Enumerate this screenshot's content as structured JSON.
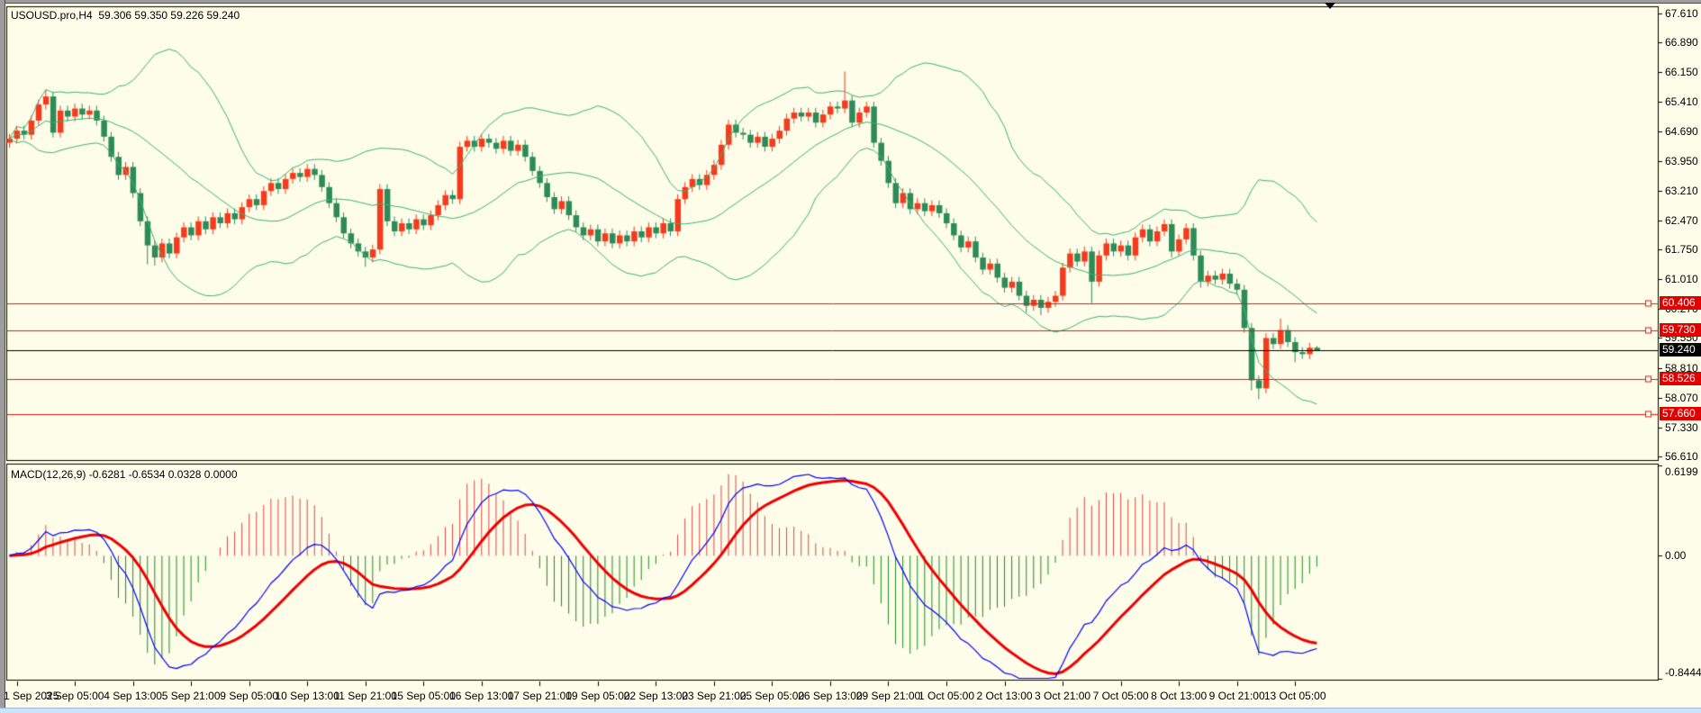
{
  "title": {
    "text": "USOUSD.pro,H4  59.306 59.350 59.226 59.240",
    "symbol": "USOUSD.pro",
    "timeframe": "H4",
    "ohlc": {
      "open": "59.306",
      "high": "59.350",
      "low": "59.226",
      "close": "59.240"
    }
  },
  "macd_label": {
    "text": "MACD(12,26,9) -0.6281 -0.6534 0.0328 0.0000",
    "params": "12,26,9",
    "main": "-0.6281",
    "signal": "-0.6534",
    "hist": "0.0328",
    "extra": "0.0000"
  },
  "macd_axis": {
    "max": "0.6199",
    "zero": "0.00",
    "min": "-0.8444"
  },
  "lines": {
    "horizontal": [
      {
        "price": 60.406,
        "label": "60.406"
      },
      {
        "price": 59.73,
        "label": "59.730"
      },
      {
        "price": 58.526,
        "label": "58.526"
      },
      {
        "price": 57.66,
        "label": "57.660"
      }
    ],
    "current": {
      "price": 59.24,
      "label": "59.240"
    }
  },
  "colors": {
    "background": "#fdfdea",
    "pane_border": "#000000",
    "bull": "#f53b1c",
    "bear": "#2e8b57",
    "bollinger": "#3cb371",
    "hline": "#e51717",
    "current_line": "#000000",
    "macd_main": "#0000ff",
    "macd_signal": "#ee0000",
    "hist_up": "#d94848",
    "hist_down": "#1f8a1f",
    "badge_red": "#e00000",
    "badge_black": "#000000",
    "axis_text": "#000000"
  },
  "chart_data": {
    "type": "candlestick",
    "symbol": "USOUSD.pro",
    "timeframe": "H4",
    "ylim": [
      56.61,
      67.61
    ],
    "y_tick_labels": [
      "67.610",
      "66.890",
      "66.150",
      "65.410",
      "64.690",
      "63.950",
      "63.210",
      "62.470",
      "61.750",
      "61.010",
      "60.270",
      "59.550",
      "58.810",
      "58.070",
      "57.330",
      "56.610"
    ],
    "x_tick_labels": [
      "1 Sep 2025",
      "3 Sep 05:00",
      "4 Sep 13:00",
      "5 Sep 21:00",
      "9 Sep 05:00",
      "10 Sep 13:00",
      "11 Sep 21:00",
      "15 Sep 05:00",
      "16 Sep 13:00",
      "17 Sep 21:00",
      "19 Sep 05:00",
      "22 Sep 13:00",
      "23 Sep 21:00",
      "25 Sep 05:00",
      "26 Sep 13:00",
      "29 Sep 21:00",
      "1 Oct 05:00",
      "2 Oct 13:00",
      "3 Oct 21:00",
      "7 Oct 05:00",
      "8 Oct 13:00",
      "9 Oct 21:00",
      "13 Oct 05:00"
    ],
    "first_label_bar": 1,
    "label_every_bars": 8,
    "indicators": {
      "bollinger": {
        "period": 20,
        "deviation": 2
      },
      "macd": {
        "fast": 12,
        "slow": 26,
        "signal": 9,
        "pane_max": 0.6199,
        "pane_min": -0.8444
      }
    },
    "candles": [
      [
        64.4,
        64.62,
        64.28,
        64.5
      ],
      [
        64.5,
        64.82,
        64.38,
        64.7
      ],
      [
        64.7,
        64.82,
        64.48,
        64.6
      ],
      [
        64.6,
        65.07,
        64.48,
        64.95
      ],
      [
        64.95,
        65.47,
        64.83,
        65.35
      ],
      [
        65.35,
        65.72,
        65.23,
        65.55
      ],
      [
        65.55,
        65.67,
        64.53,
        64.65
      ],
      [
        64.65,
        65.32,
        64.53,
        65.2
      ],
      [
        65.2,
        65.32,
        64.93,
        65.05
      ],
      [
        65.05,
        65.37,
        64.93,
        65.25
      ],
      [
        65.25,
        65.37,
        64.98,
        65.1
      ],
      [
        65.1,
        65.32,
        64.98,
        65.2
      ],
      [
        65.2,
        65.32,
        64.83,
        64.95
      ],
      [
        64.95,
        65.07,
        64.43,
        64.55
      ],
      [
        64.55,
        64.67,
        63.93,
        64.05
      ],
      [
        64.05,
        64.17,
        63.48,
        63.6
      ],
      [
        63.6,
        63.92,
        63.48,
        63.8
      ],
      [
        63.8,
        63.92,
        63.03,
        63.15
      ],
      [
        63.15,
        63.27,
        62.33,
        62.45
      ],
      [
        62.45,
        62.57,
        61.38,
        61.85
      ],
      [
        61.85,
        61.97,
        61.35,
        61.55
      ],
      [
        61.55,
        62.02,
        61.43,
        61.9
      ],
      [
        61.9,
        62.02,
        61.53,
        61.65
      ],
      [
        61.65,
        62.17,
        61.53,
        62.05
      ],
      [
        62.05,
        62.42,
        61.93,
        62.3
      ],
      [
        62.3,
        62.42,
        61.98,
        62.1
      ],
      [
        62.1,
        62.57,
        61.98,
        62.45
      ],
      [
        62.45,
        62.57,
        62.13,
        62.25
      ],
      [
        62.25,
        62.67,
        62.13,
        62.55
      ],
      [
        62.55,
        62.67,
        62.28,
        62.4
      ],
      [
        62.4,
        62.77,
        62.28,
        62.65
      ],
      [
        62.65,
        62.77,
        62.38,
        62.5
      ],
      [
        62.5,
        62.92,
        62.38,
        62.8
      ],
      [
        62.8,
        63.12,
        62.68,
        63.0
      ],
      [
        63.0,
        63.12,
        62.73,
        62.85
      ],
      [
        62.85,
        63.32,
        62.73,
        63.2
      ],
      [
        63.2,
        63.52,
        63.08,
        63.4
      ],
      [
        63.4,
        63.52,
        63.13,
        63.25
      ],
      [
        63.25,
        63.62,
        63.13,
        63.5
      ],
      [
        63.5,
        63.77,
        63.38,
        63.65
      ],
      [
        63.65,
        63.77,
        63.43,
        63.55
      ],
      [
        63.55,
        63.87,
        63.43,
        63.75
      ],
      [
        63.75,
        63.87,
        63.48,
        63.6
      ],
      [
        63.6,
        63.72,
        63.18,
        63.3
      ],
      [
        63.3,
        63.42,
        62.78,
        62.9
      ],
      [
        62.9,
        63.02,
        62.43,
        62.55
      ],
      [
        62.55,
        62.67,
        62.03,
        62.15
      ],
      [
        62.15,
        62.27,
        61.78,
        61.9
      ],
      [
        61.9,
        62.02,
        61.58,
        61.7
      ],
      [
        61.7,
        61.82,
        61.32,
        61.55
      ],
      [
        61.55,
        61.87,
        61.43,
        61.75
      ],
      [
        61.75,
        63.37,
        61.63,
        63.25
      ],
      [
        63.25,
        63.37,
        62.33,
        62.45
      ],
      [
        62.45,
        62.57,
        62.08,
        62.2
      ],
      [
        62.2,
        62.52,
        62.08,
        62.4
      ],
      [
        62.4,
        62.52,
        62.13,
        62.25
      ],
      [
        62.25,
        62.62,
        62.13,
        62.5
      ],
      [
        62.5,
        62.62,
        62.23,
        62.35
      ],
      [
        62.35,
        62.72,
        62.23,
        62.6
      ],
      [
        62.6,
        62.97,
        62.48,
        62.85
      ],
      [
        62.85,
        63.22,
        62.73,
        63.1
      ],
      [
        63.1,
        63.22,
        62.88,
        63.0
      ],
      [
        63.0,
        64.42,
        62.88,
        64.3
      ],
      [
        64.3,
        64.57,
        64.18,
        64.45
      ],
      [
        64.45,
        64.57,
        64.18,
        64.3
      ],
      [
        64.3,
        64.62,
        64.18,
        64.5
      ],
      [
        64.5,
        64.62,
        64.28,
        64.4
      ],
      [
        64.4,
        64.52,
        64.13,
        64.25
      ],
      [
        64.25,
        64.57,
        64.13,
        64.45
      ],
      [
        64.45,
        64.57,
        64.08,
        64.2
      ],
      [
        64.2,
        64.47,
        64.08,
        64.35
      ],
      [
        64.35,
        64.47,
        63.93,
        64.05
      ],
      [
        64.05,
        64.17,
        63.58,
        63.7
      ],
      [
        63.7,
        63.82,
        63.28,
        63.4
      ],
      [
        63.4,
        63.52,
        62.93,
        63.05
      ],
      [
        63.05,
        63.17,
        62.63,
        62.75
      ],
      [
        62.75,
        63.07,
        62.63,
        62.95
      ],
      [
        62.95,
        63.07,
        62.48,
        62.6
      ],
      [
        62.6,
        62.72,
        62.18,
        62.3
      ],
      [
        62.3,
        62.42,
        61.98,
        62.1
      ],
      [
        62.1,
        62.37,
        61.98,
        62.25
      ],
      [
        62.25,
        62.37,
        61.83,
        61.95
      ],
      [
        61.95,
        62.27,
        61.83,
        62.15
      ],
      [
        62.15,
        62.27,
        61.78,
        61.9
      ],
      [
        61.9,
        62.22,
        61.78,
        62.1
      ],
      [
        62.1,
        62.22,
        61.83,
        61.95
      ],
      [
        61.95,
        62.32,
        61.83,
        62.2
      ],
      [
        62.2,
        62.32,
        61.93,
        62.05
      ],
      [
        62.05,
        62.42,
        61.93,
        62.3
      ],
      [
        62.3,
        62.42,
        62.03,
        62.15
      ],
      [
        62.15,
        62.52,
        62.03,
        62.4
      ],
      [
        62.4,
        62.52,
        62.08,
        62.2
      ],
      [
        62.2,
        63.12,
        62.08,
        63.0
      ],
      [
        63.0,
        63.42,
        62.88,
        63.3
      ],
      [
        63.3,
        63.62,
        63.18,
        63.5
      ],
      [
        63.5,
        63.62,
        63.23,
        63.35
      ],
      [
        63.35,
        63.72,
        63.23,
        63.6
      ],
      [
        63.6,
        63.97,
        63.48,
        63.85
      ],
      [
        63.85,
        64.47,
        63.73,
        64.35
      ],
      [
        64.35,
        64.97,
        64.23,
        64.85
      ],
      [
        64.85,
        64.97,
        64.53,
        64.65
      ],
      [
        64.65,
        64.77,
        64.48,
        64.6
      ],
      [
        64.6,
        64.72,
        64.28,
        64.4
      ],
      [
        64.4,
        64.67,
        64.28,
        64.55
      ],
      [
        64.55,
        64.67,
        64.18,
        64.3
      ],
      [
        64.3,
        64.62,
        64.18,
        64.5
      ],
      [
        64.5,
        64.82,
        64.38,
        64.7
      ],
      [
        64.7,
        65.12,
        64.58,
        65.0
      ],
      [
        65.0,
        65.27,
        64.88,
        65.15
      ],
      [
        65.15,
        65.27,
        64.93,
        65.05
      ],
      [
        65.05,
        65.27,
        64.93,
        65.15
      ],
      [
        65.15,
        65.27,
        64.78,
        64.9
      ],
      [
        64.9,
        65.22,
        64.78,
        65.1
      ],
      [
        65.1,
        65.42,
        64.98,
        65.3
      ],
      [
        65.3,
        65.42,
        65.13,
        65.25
      ],
      [
        65.25,
        66.17,
        65.13,
        65.45
      ],
      [
        65.45,
        65.57,
        64.78,
        64.9
      ],
      [
        64.9,
        65.27,
        64.78,
        65.15
      ],
      [
        65.15,
        65.42,
        65.03,
        65.3
      ],
      [
        65.3,
        65.42,
        64.28,
        64.4
      ],
      [
        64.4,
        64.52,
        63.83,
        63.95
      ],
      [
        63.95,
        64.07,
        63.28,
        63.4
      ],
      [
        63.4,
        63.52,
        62.78,
        62.9
      ],
      [
        62.9,
        63.27,
        62.78,
        63.15
      ],
      [
        63.15,
        63.27,
        62.63,
        62.75
      ],
      [
        62.75,
        63.02,
        62.63,
        62.9
      ],
      [
        62.9,
        63.02,
        62.58,
        62.7
      ],
      [
        62.7,
        62.97,
        62.58,
        62.85
      ],
      [
        62.85,
        62.97,
        62.53,
        62.65
      ],
      [
        62.65,
        62.77,
        62.28,
        62.4
      ],
      [
        62.4,
        62.52,
        61.98,
        62.1
      ],
      [
        62.1,
        62.22,
        61.68,
        61.8
      ],
      [
        61.8,
        62.07,
        61.68,
        61.95
      ],
      [
        61.95,
        62.07,
        61.43,
        61.55
      ],
      [
        61.55,
        61.67,
        61.13,
        61.25
      ],
      [
        61.25,
        61.52,
        61.13,
        61.4
      ],
      [
        61.4,
        61.52,
        60.93,
        61.05
      ],
      [
        61.05,
        61.17,
        60.68,
        60.8
      ],
      [
        60.8,
        61.07,
        60.68,
        60.95
      ],
      [
        60.95,
        61.07,
        60.48,
        60.6
      ],
      [
        60.6,
        60.72,
        60.18,
        60.35
      ],
      [
        60.35,
        60.62,
        60.23,
        60.5
      ],
      [
        60.5,
        60.62,
        60.12,
        60.3
      ],
      [
        60.3,
        60.57,
        60.18,
        60.45
      ],
      [
        60.45,
        60.72,
        60.33,
        60.6
      ],
      [
        60.6,
        61.42,
        60.48,
        61.3
      ],
      [
        61.3,
        61.77,
        61.18,
        61.65
      ],
      [
        61.65,
        61.77,
        61.33,
        61.45
      ],
      [
        61.45,
        61.82,
        61.33,
        61.7
      ],
      [
        61.7,
        61.82,
        60.42,
        60.95
      ],
      [
        60.95,
        61.72,
        60.83,
        61.6
      ],
      [
        61.6,
        62.02,
        61.48,
        61.9
      ],
      [
        61.9,
        62.02,
        61.58,
        61.7
      ],
      [
        61.7,
        61.97,
        61.58,
        61.85
      ],
      [
        61.85,
        61.97,
        61.48,
        61.6
      ],
      [
        61.6,
        62.17,
        61.48,
        62.05
      ],
      [
        62.05,
        62.37,
        61.93,
        62.25
      ],
      [
        62.25,
        62.37,
        61.83,
        61.95
      ],
      [
        61.95,
        62.32,
        61.83,
        62.2
      ],
      [
        62.2,
        62.5,
        62.08,
        62.38
      ],
      [
        62.38,
        62.5,
        61.55,
        61.7
      ],
      [
        61.7,
        62.12,
        61.58,
        62.0
      ],
      [
        62.0,
        62.4,
        61.88,
        62.28
      ],
      [
        62.28,
        62.4,
        61.48,
        61.6
      ],
      [
        61.6,
        61.72,
        60.8,
        60.95
      ],
      [
        60.95,
        61.22,
        60.83,
        61.1
      ],
      [
        61.1,
        61.22,
        60.88,
        61.0
      ],
      [
        61.0,
        61.27,
        60.88,
        61.15
      ],
      [
        61.15,
        61.27,
        60.78,
        60.9
      ],
      [
        60.9,
        61.02,
        60.63,
        60.75
      ],
      [
        60.75,
        60.87,
        59.68,
        59.8
      ],
      [
        59.8,
        59.92,
        58.25,
        58.5
      ],
      [
        58.5,
        58.62,
        58.03,
        58.3
      ],
      [
        58.3,
        59.67,
        58.18,
        59.55
      ],
      [
        59.55,
        59.67,
        59.28,
        59.4
      ],
      [
        59.4,
        60.03,
        59.28,
        59.75
      ],
      [
        59.75,
        59.87,
        59.33,
        59.45
      ],
      [
        59.45,
        59.57,
        58.95,
        59.2
      ],
      [
        59.2,
        59.32,
        59.03,
        59.15
      ],
      [
        59.15,
        59.43,
        59.03,
        59.31
      ],
      [
        59.31,
        59.35,
        59.23,
        59.24
      ]
    ]
  }
}
